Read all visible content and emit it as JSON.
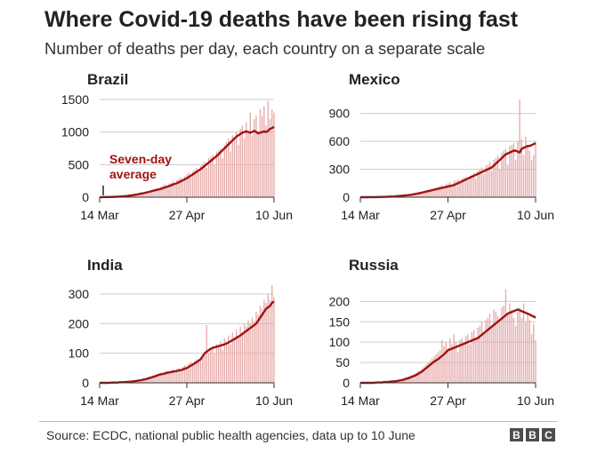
{
  "title": "Where Covid-19 deaths have been rising fast",
  "subtitle": "Number of deaths per day, each country on a separate scale",
  "source": "Source: ECDC, national public health agencies, data up to 10 June",
  "brand": [
    "B",
    "B",
    "C"
  ],
  "colors": {
    "bar": "#e6a9a9",
    "line": "#a01414",
    "grid": "#cccccc",
    "text": "#222222"
  },
  "chart_data": [
    {
      "type": "bar",
      "title": "Brazil",
      "annotation": {
        "line1": "Seven-day",
        "line2": "average"
      },
      "xticks": [
        "14 Mar",
        "27 Apr",
        "10 Jun"
      ],
      "xtick_days": [
        0,
        44,
        88
      ],
      "yticks": [
        0,
        500,
        1000,
        1500
      ],
      "ylim": [
        0,
        1500
      ],
      "days": 89,
      "series": [
        {
          "name": "Daily deaths",
          "values": [
            0,
            1,
            2,
            2,
            3,
            4,
            5,
            8,
            10,
            12,
            15,
            20,
            22,
            18,
            30,
            35,
            40,
            45,
            50,
            55,
            60,
            70,
            65,
            80,
            90,
            100,
            110,
            120,
            130,
            140,
            100,
            160,
            180,
            200,
            150,
            210,
            220,
            250,
            180,
            260,
            280,
            300,
            250,
            320,
            350,
            380,
            300,
            400,
            420,
            450,
            380,
            480,
            500,
            550,
            450,
            600,
            620,
            650,
            500,
            700,
            720,
            750,
            600,
            800,
            850,
            900,
            700,
            950,
            880,
            1000,
            800,
            1050,
            1100,
            900,
            1150,
            1000,
            1300,
            950,
            1200,
            1250,
            1000,
            1350,
            1250,
            1400,
            1100,
            1480,
            1200,
            1350,
            1300
          ]
        },
        {
          "name": "Seven-day average",
          "values": [
            0,
            1,
            1,
            2,
            2,
            3,
            4,
            5,
            6,
            8,
            10,
            12,
            14,
            16,
            20,
            24,
            28,
            32,
            38,
            42,
            48,
            55,
            60,
            68,
            75,
            82,
            90,
            100,
            105,
            115,
            120,
            130,
            140,
            150,
            160,
            170,
            180,
            195,
            205,
            215,
            230,
            245,
            260,
            275,
            290,
            310,
            330,
            350,
            370,
            390,
            410,
            430,
            455,
            480,
            505,
            530,
            555,
            580,
            605,
            630,
            660,
            690,
            720,
            750,
            780,
            810,
            840,
            870,
            900,
            930,
            950,
            970,
            990,
            1000,
            1010,
            1000,
            990,
            1000,
            1020,
            1000,
            980,
            990,
            1000,
            1010,
            1000,
            1020,
            1050,
            1060,
            1080
          ]
        }
      ]
    },
    {
      "type": "bar",
      "title": "Mexico",
      "xticks": [
        "14 Mar",
        "27 Apr",
        "10 Jun"
      ],
      "xtick_days": [
        0,
        44,
        88
      ],
      "yticks": [
        0,
        300,
        600,
        900
      ],
      "ylim": [
        0,
        1050
      ],
      "days": 89,
      "series": [
        {
          "name": "Daily deaths",
          "values": [
            0,
            0,
            0,
            0,
            0,
            1,
            1,
            1,
            2,
            2,
            2,
            3,
            3,
            4,
            5,
            6,
            7,
            8,
            10,
            12,
            14,
            15,
            18,
            20,
            22,
            25,
            28,
            30,
            35,
            40,
            45,
            50,
            60,
            70,
            55,
            80,
            90,
            100,
            75,
            110,
            120,
            130,
            100,
            140,
            150,
            160,
            120,
            170,
            180,
            190,
            150,
            200,
            210,
            220,
            180,
            230,
            240,
            260,
            200,
            280,
            300,
            320,
            250,
            340,
            350,
            380,
            280,
            400,
            420,
            450,
            300,
            480,
            500,
            520,
            350,
            550,
            560,
            580,
            400,
            600,
            1050,
            620,
            450,
            650,
            550,
            500,
            400,
            450,
            600
          ]
        },
        {
          "name": "Seven-day average",
          "values": [
            0,
            0,
            0,
            0,
            0,
            1,
            1,
            1,
            1,
            2,
            2,
            3,
            3,
            4,
            5,
            6,
            7,
            8,
            10,
            12,
            14,
            16,
            18,
            20,
            22,
            25,
            28,
            32,
            36,
            40,
            45,
            50,
            55,
            60,
            65,
            70,
            75,
            80,
            85,
            90,
            95,
            100,
            105,
            110,
            115,
            120,
            125,
            130,
            140,
            150,
            160,
            170,
            180,
            190,
            200,
            210,
            220,
            230,
            240,
            250,
            260,
            270,
            280,
            290,
            300,
            310,
            320,
            340,
            360,
            380,
            400,
            420,
            440,
            460,
            470,
            480,
            490,
            500,
            500,
            490,
            480,
            520,
            530,
            540,
            550,
            550,
            560,
            570,
            580
          ]
        }
      ]
    },
    {
      "type": "bar",
      "title": "India",
      "xticks": [
        "14 Mar",
        "27 Apr",
        "10 Jun"
      ],
      "xtick_days": [
        0,
        44,
        88
      ],
      "yticks": [
        0,
        100,
        200,
        300
      ],
      "ylim": [
        0,
        330
      ],
      "days": 89,
      "series": [
        {
          "name": "Daily deaths",
          "values": [
            0,
            0,
            0,
            0,
            0,
            1,
            1,
            1,
            1,
            2,
            2,
            2,
            3,
            3,
            4,
            4,
            5,
            6,
            7,
            8,
            10,
            12,
            14,
            15,
            18,
            20,
            22,
            25,
            28,
            30,
            32,
            35,
            30,
            38,
            40,
            35,
            42,
            45,
            40,
            48,
            50,
            45,
            55,
            60,
            55,
            65,
            70,
            60,
            75,
            80,
            70,
            85,
            90,
            95,
            195,
            100,
            110,
            120,
            100,
            130,
            120,
            140,
            110,
            150,
            140,
            160,
            130,
            170,
            150,
            180,
            160,
            190,
            170,
            200,
            190,
            210,
            200,
            220,
            210,
            240,
            230,
            260,
            250,
            280,
            270,
            300,
            280,
            330,
            290
          ]
        },
        {
          "name": "Seven-day average",
          "values": [
            0,
            0,
            0,
            0,
            0,
            0,
            1,
            1,
            1,
            1,
            2,
            2,
            2,
            3,
            3,
            4,
            4,
            5,
            6,
            7,
            8,
            9,
            11,
            12,
            14,
            16,
            18,
            20,
            22,
            25,
            27,
            29,
            30,
            32,
            34,
            35,
            36,
            38,
            39,
            40,
            42,
            43,
            45,
            48,
            50,
            54,
            58,
            62,
            66,
            70,
            75,
            80,
            90,
            100,
            105,
            110,
            115,
            118,
            120,
            122,
            124,
            126,
            128,
            130,
            133,
            136,
            140,
            144,
            148,
            152,
            156,
            160,
            165,
            170,
            175,
            180,
            185,
            190,
            195,
            200,
            210,
            220,
            230,
            240,
            250,
            255,
            260,
            270,
            275
          ]
        }
      ]
    },
    {
      "type": "bar",
      "title": "Russia",
      "xticks": [
        "14 Mar",
        "27 Apr",
        "10 Jun"
      ],
      "xtick_days": [
        0,
        44,
        88
      ],
      "yticks": [
        0,
        50,
        100,
        150,
        200
      ],
      "ylim": [
        0,
        240
      ],
      "days": 89,
      "series": [
        {
          "name": "Daily deaths",
          "values": [
            0,
            0,
            0,
            0,
            0,
            0,
            0,
            1,
            1,
            1,
            2,
            2,
            2,
            3,
            3,
            4,
            4,
            5,
            6,
            7,
            8,
            10,
            12,
            14,
            16,
            18,
            20,
            22,
            25,
            28,
            30,
            35,
            40,
            45,
            50,
            55,
            60,
            65,
            70,
            75,
            80,
            105,
            90,
            100,
            85,
            110,
            95,
            120,
            100,
            75,
            105,
            110,
            100,
            115,
            120,
            95,
            125,
            130,
            105,
            135,
            140,
            150,
            125,
            155,
            160,
            170,
            140,
            180,
            175,
            165,
            150,
            185,
            190,
            230,
            170,
            195,
            180,
            160,
            140,
            175,
            185,
            160,
            195,
            150,
            170,
            155,
            120,
            145,
            105
          ]
        },
        {
          "name": "Seven-day average",
          "values": [
            0,
            0,
            0,
            0,
            0,
            0,
            0,
            0,
            1,
            1,
            1,
            1,
            2,
            2,
            2,
            3,
            3,
            4,
            4,
            5,
            6,
            7,
            8,
            10,
            11,
            13,
            15,
            17,
            19,
            22,
            25,
            28,
            32,
            36,
            40,
            44,
            48,
            52,
            55,
            58,
            62,
            66,
            70,
            75,
            80,
            82,
            84,
            86,
            88,
            90,
            92,
            94,
            96,
            98,
            100,
            102,
            104,
            106,
            108,
            110,
            114,
            118,
            122,
            126,
            130,
            134,
            138,
            142,
            146,
            150,
            154,
            158,
            162,
            166,
            170,
            172,
            174,
            176,
            178,
            180,
            178,
            176,
            174,
            172,
            170,
            168,
            165,
            163,
            160
          ]
        }
      ]
    }
  ]
}
